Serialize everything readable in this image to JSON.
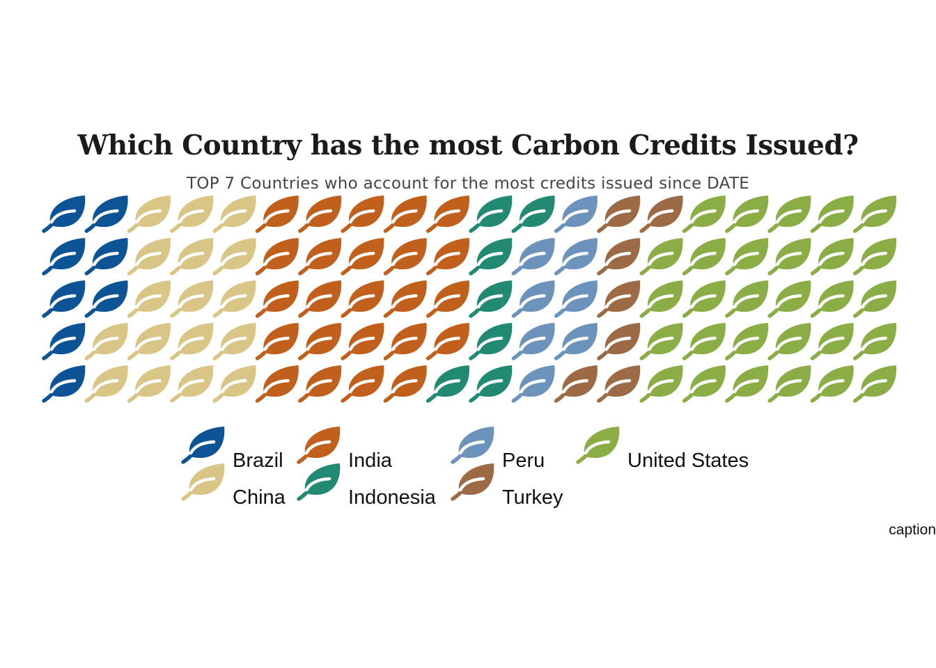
{
  "title": "Which Country has the most Carbon Credits Issued?",
  "subtitle": "TOP 7 Countries who account for the most credits issued since DATE",
  "caption": "caption",
  "chart_data": {
    "type": "waffle",
    "icon": "leaf-icon",
    "rows": 5,
    "cols": 20,
    "fill_order": "column-major",
    "title": "Which Country has the most Carbon Credits Issued?",
    "subtitle": "TOP 7 Countries who account for the most credits issued since DATE",
    "categories": [
      "Brazil",
      "China",
      "India",
      "Indonesia",
      "Peru",
      "Turkey",
      "United States"
    ],
    "values": [
      8,
      17,
      24,
      7,
      8,
      7,
      29
    ],
    "colors": [
      "#0c5496",
      "#d9c585",
      "#c0601c",
      "#228a72",
      "#6c93bb",
      "#9c6a44",
      "#8aad45"
    ],
    "legend": {
      "position": "bottom",
      "columns": [
        [
          "Brazil",
          "China"
        ],
        [
          "India",
          "Indonesia"
        ],
        [
          "Peru",
          "Turkey"
        ],
        [
          "United States"
        ]
      ]
    }
  }
}
